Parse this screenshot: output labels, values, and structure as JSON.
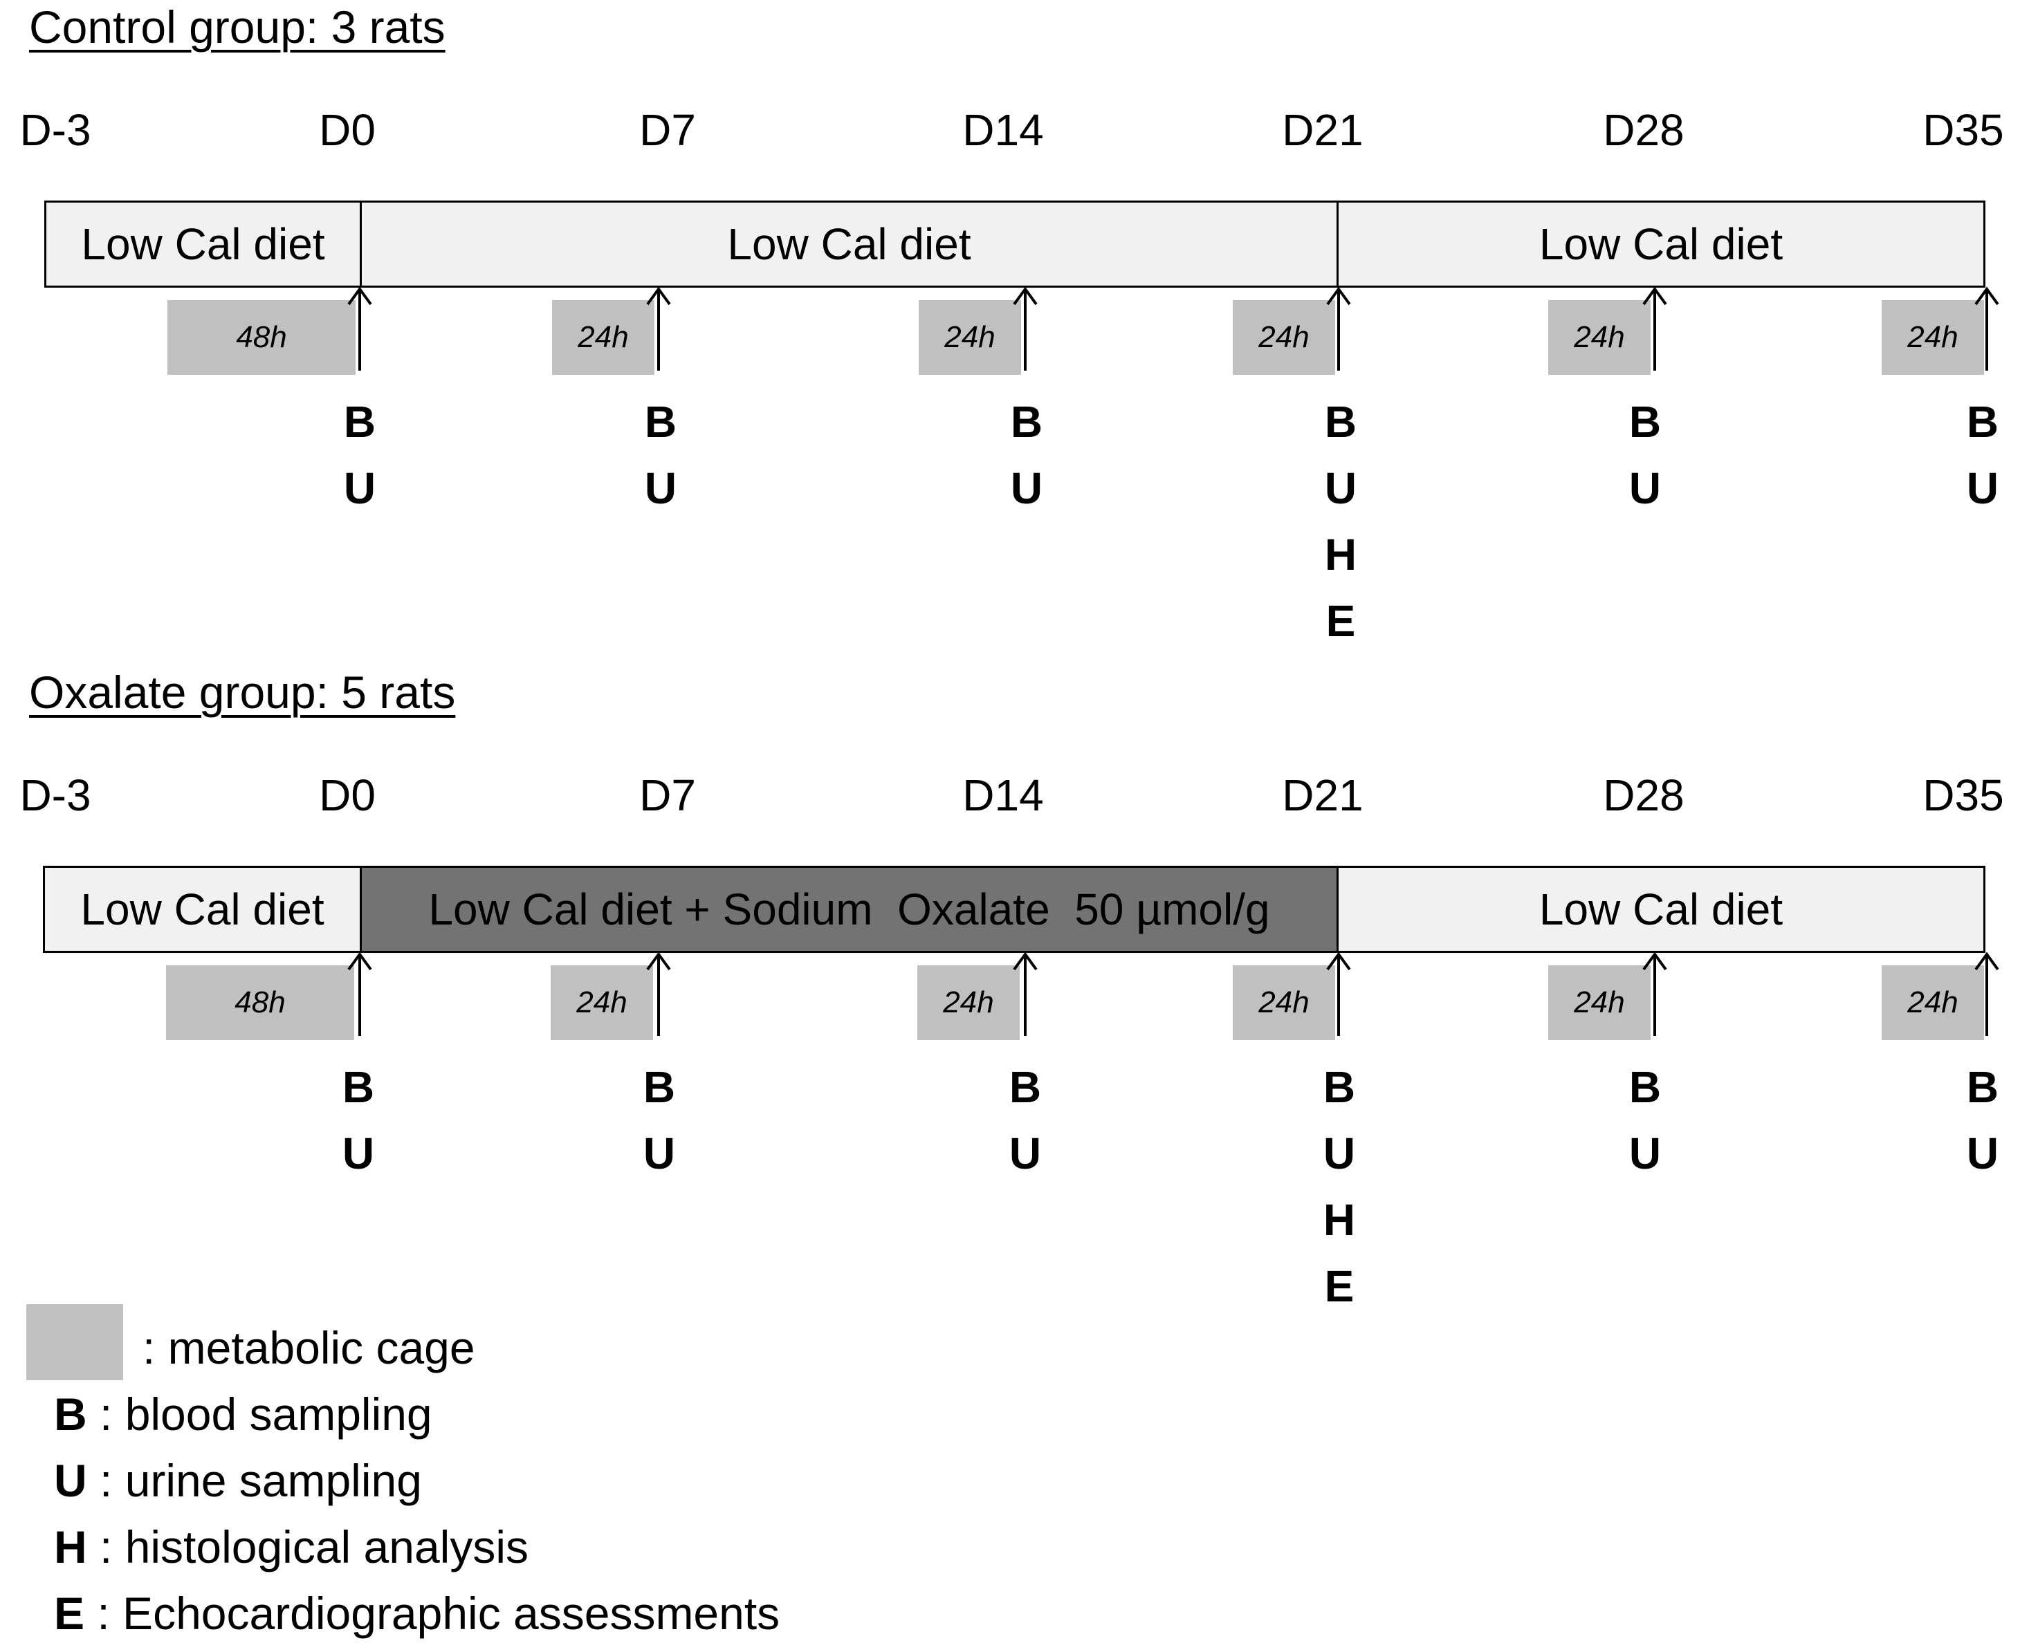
{
  "groups": [
    {
      "title": "Control group: 3 rats",
      "days": [
        "D-3",
        "D0",
        "D7",
        "D14",
        "D21",
        "D28",
        "D35"
      ],
      "bars": [
        {
          "label": "Low Cal diet",
          "style": "light"
        },
        {
          "label": "Low Cal diet",
          "style": "light"
        },
        {
          "label": "Low Cal diet",
          "style": "light"
        }
      ],
      "cages": [
        "48h",
        "24h",
        "24h",
        "24h",
        "24h",
        "24h"
      ],
      "samples": [
        [
          "B",
          "U"
        ],
        [
          "B",
          "U"
        ],
        [
          "B",
          "U"
        ],
        [
          "B",
          "U",
          "H",
          "E"
        ],
        [
          "B",
          "U"
        ],
        [
          "B",
          "U"
        ]
      ]
    },
    {
      "title": "Oxalate group: 5 rats",
      "days": [
        "D-3",
        "D0",
        "D7",
        "D14",
        "D21",
        "D28",
        "D35"
      ],
      "bars": [
        {
          "label": "Low Cal diet",
          "style": "light"
        },
        {
          "label": "Low Cal diet + Sodium  Oxalate  50 µmol/g",
          "style": "dark"
        },
        {
          "label": "Low Cal diet",
          "style": "light"
        }
      ],
      "cages": [
        "48h",
        "24h",
        "24h",
        "24h",
        "24h",
        "24h"
      ],
      "samples": [
        [
          "B",
          "U"
        ],
        [
          "B",
          "U"
        ],
        [
          "B",
          "U"
        ],
        [
          "B",
          "U",
          "H",
          "E"
        ],
        [
          "B",
          "U"
        ],
        [
          "B",
          "U"
        ]
      ]
    }
  ],
  "legend": {
    "swatch_text": ": metabolic cage",
    "items": [
      {
        "code": "B",
        "text": ": blood sampling"
      },
      {
        "code": "U",
        "text": ": urine sampling"
      },
      {
        "code": "H",
        "text": ": histological analysis"
      },
      {
        "code": "E",
        "text": ": Echocardiographic assessments"
      }
    ]
  },
  "colors": {
    "bar_light": "#f1f1f1",
    "bar_dark": "#737373",
    "cage": "#c0c0c0"
  }
}
